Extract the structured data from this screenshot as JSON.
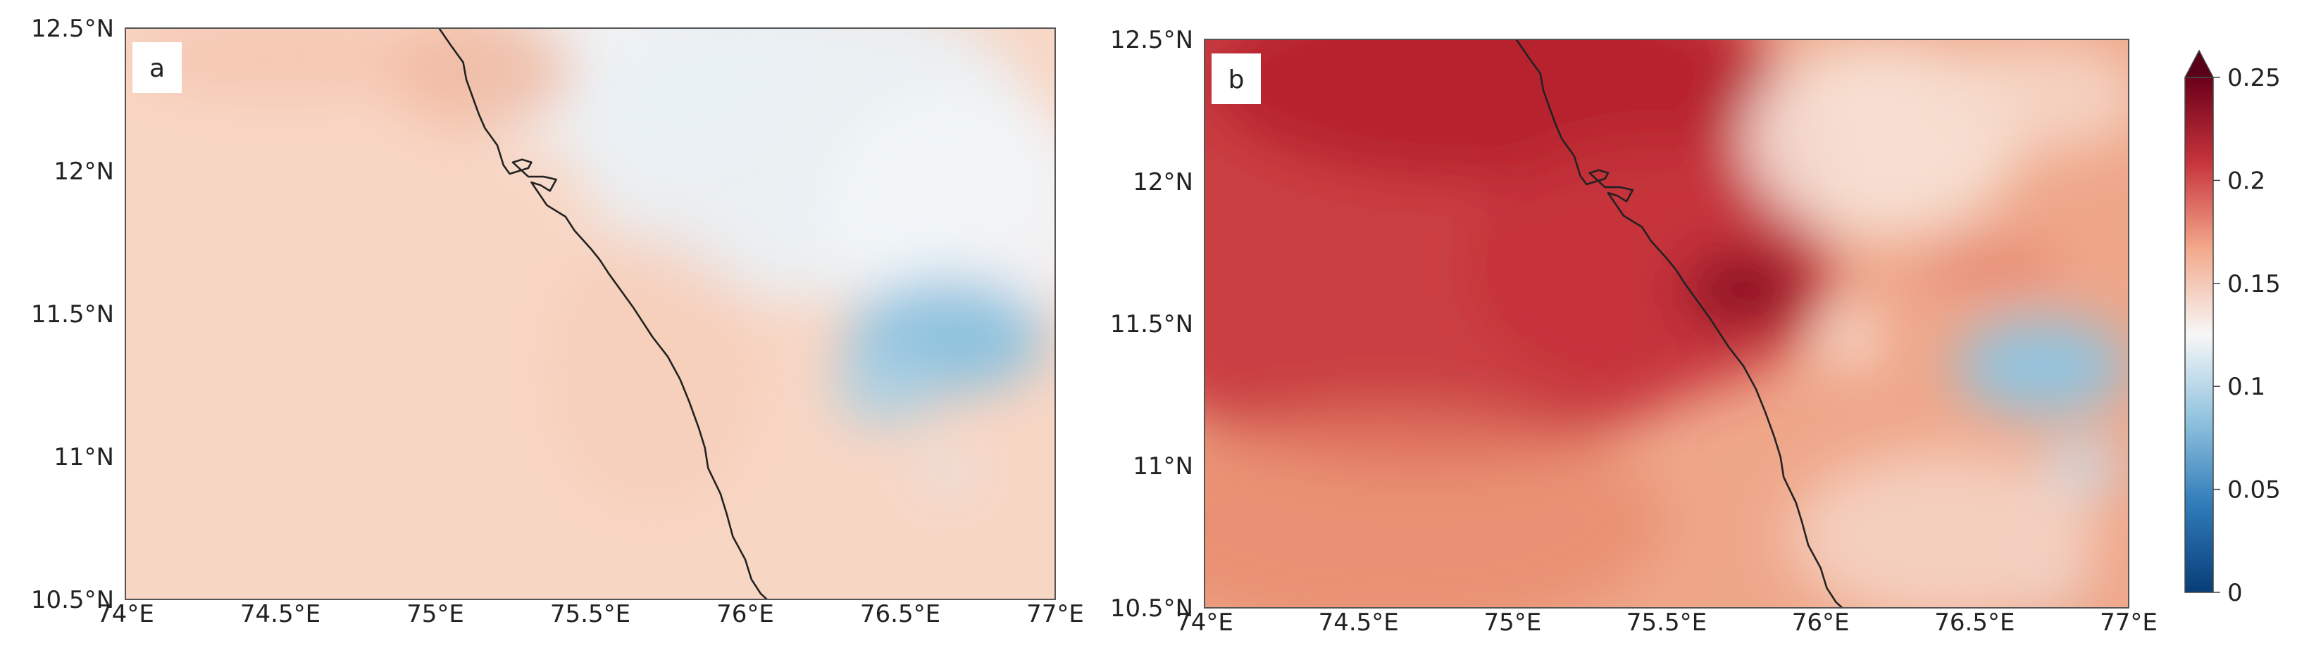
{
  "figure": {
    "panels": [
      {
        "id": "a",
        "label": "a",
        "x_ticks": [
          "74°E",
          "74.5°E",
          "75°E",
          "75.5°E",
          "76°E",
          "76.5°E",
          "77°E"
        ],
        "y_ticks": [
          "12.5°N",
          "12°N",
          "11.5°N",
          "11°N",
          "10.5°N"
        ],
        "background_color": "#f8d6c4",
        "field": [
          {
            "lon": 75.6,
            "lat": 12.35,
            "r_lon": 0.55,
            "r_lat": 0.3,
            "color": "#f0f4f8",
            "alpha": 0.95
          },
          {
            "lon": 76.2,
            "lat": 12.1,
            "r_lon": 0.75,
            "r_lat": 0.55,
            "color": "#eaf1f6",
            "alpha": 0.95
          },
          {
            "lon": 76.7,
            "lat": 11.85,
            "r_lon": 0.45,
            "r_lat": 0.45,
            "color": "#f2f5f8",
            "alpha": 0.9
          },
          {
            "lon": 76.65,
            "lat": 11.42,
            "r_lon": 0.32,
            "r_lat": 0.2,
            "color": "#8fc2de",
            "alpha": 1.0
          },
          {
            "lon": 76.45,
            "lat": 11.25,
            "r_lon": 0.16,
            "r_lat": 0.14,
            "color": "#a6cfe5",
            "alpha": 0.9
          },
          {
            "lon": 76.65,
            "lat": 10.95,
            "r_lon": 0.08,
            "r_lat": 0.06,
            "color": "#d8e8f2",
            "alpha": 0.9
          },
          {
            "lon": 75.15,
            "lat": 12.35,
            "r_lon": 0.3,
            "r_lat": 0.2,
            "color": "#f0b49a",
            "alpha": 0.8
          },
          {
            "lon": 74.5,
            "lat": 12.4,
            "r_lon": 0.5,
            "r_lat": 0.15,
            "color": "#f3c0a8",
            "alpha": 0.6
          },
          {
            "lon": 75.7,
            "lat": 11.3,
            "r_lon": 0.35,
            "r_lat": 0.5,
            "color": "#f6c9b3",
            "alpha": 0.5
          }
        ]
      },
      {
        "id": "b",
        "label": "b",
        "x_ticks": [
          "74°E",
          "74.5°E",
          "75°E",
          "75.5°E",
          "76°E",
          "76.5°E",
          "77°E"
        ],
        "y_ticks": [
          "12.5°N",
          "12°N",
          "11.5°N",
          "11°N",
          "10.5°N"
        ],
        "background_color": "#efa78a",
        "field": [
          {
            "lon": 74.7,
            "lat": 12.0,
            "r_lon": 1.3,
            "r_lat": 1.0,
            "color": "#c8393f",
            "alpha": 0.95
          },
          {
            "lon": 74.9,
            "lat": 12.35,
            "r_lon": 0.9,
            "r_lat": 0.35,
            "color": "#b51f2e",
            "alpha": 0.9
          },
          {
            "lon": 75.45,
            "lat": 11.7,
            "r_lon": 0.6,
            "r_lat": 0.45,
            "color": "#c53239",
            "alpha": 0.85
          },
          {
            "lon": 74.6,
            "lat": 10.8,
            "r_lon": 0.9,
            "r_lat": 0.4,
            "color": "#e7876b",
            "alpha": 0.7
          },
          {
            "lon": 75.75,
            "lat": 11.62,
            "r_lon": 0.2,
            "r_lat": 0.13,
            "color": "#8b0a22",
            "alpha": 1.0
          },
          {
            "lon": 76.55,
            "lat": 11.7,
            "r_lon": 0.25,
            "r_lat": 0.08,
            "color": "#e3826b",
            "alpha": 0.8
          },
          {
            "lon": 76.2,
            "lat": 12.15,
            "r_lon": 0.45,
            "r_lat": 0.35,
            "color": "#f7e4d8",
            "alpha": 0.9
          },
          {
            "lon": 76.7,
            "lat": 12.3,
            "r_lon": 0.35,
            "r_lat": 0.2,
            "color": "#f6dccd",
            "alpha": 0.8
          },
          {
            "lon": 76.1,
            "lat": 11.45,
            "r_lon": 0.08,
            "r_lat": 0.1,
            "color": "#fbeee6",
            "alpha": 0.95
          },
          {
            "lon": 76.72,
            "lat": 11.35,
            "r_lon": 0.28,
            "r_lat": 0.17,
            "color": "#92c4df",
            "alpha": 1.0
          },
          {
            "lon": 76.85,
            "lat": 11.0,
            "r_lon": 0.13,
            "r_lat": 0.1,
            "color": "#c6dfee",
            "alpha": 0.9
          },
          {
            "lon": 76.75,
            "lat": 10.55,
            "r_lon": 0.12,
            "r_lat": 0.04,
            "color": "#d8e8f2",
            "alpha": 0.8
          },
          {
            "lon": 76.4,
            "lat": 10.75,
            "r_lon": 0.5,
            "r_lat": 0.3,
            "color": "#f7e0d4",
            "alpha": 0.7
          }
        ]
      }
    ],
    "colorbar": {
      "ticks": [
        "0",
        "0.05",
        "0.1",
        "0.15",
        "0.2",
        "0.25"
      ],
      "stops": [
        "#083d77",
        "#2f7ab8",
        "#8fc2de",
        "#f7f7f7",
        "#f3a98c",
        "#c7353d",
        "#6b0019"
      ],
      "extend_color": "#5a0018"
    },
    "coastline": [
      [
        75.012,
        12.5
      ],
      [
        75.05,
        12.44
      ],
      [
        75.09,
        12.38
      ],
      [
        75.1,
        12.32
      ],
      [
        75.12,
        12.26
      ],
      [
        75.14,
        12.2
      ],
      [
        75.16,
        12.15
      ],
      [
        75.2,
        12.09
      ],
      [
        75.22,
        12.02
      ],
      [
        75.24,
        11.99
      ],
      [
        75.3,
        12.01
      ],
      [
        75.31,
        12.03
      ],
      [
        75.28,
        12.04
      ],
      [
        75.25,
        12.03
      ],
      [
        75.3,
        11.98
      ],
      [
        75.35,
        11.98
      ],
      [
        75.39,
        11.97
      ],
      [
        75.37,
        11.93
      ],
      [
        75.34,
        11.95
      ],
      [
        75.31,
        11.96
      ],
      [
        75.36,
        11.88
      ],
      [
        75.42,
        11.84
      ],
      [
        75.45,
        11.79
      ],
      [
        75.5,
        11.73
      ],
      [
        75.53,
        11.69
      ],
      [
        75.56,
        11.64
      ],
      [
        75.6,
        11.58
      ],
      [
        75.64,
        11.52
      ],
      [
        75.67,
        11.47
      ],
      [
        75.7,
        11.42
      ],
      [
        75.75,
        11.35
      ],
      [
        75.79,
        11.27
      ],
      [
        75.82,
        11.19
      ],
      [
        75.85,
        11.1
      ],
      [
        75.87,
        11.03
      ],
      [
        75.88,
        10.96
      ],
      [
        75.92,
        10.87
      ],
      [
        75.94,
        10.8
      ],
      [
        75.96,
        10.72
      ],
      [
        76.0,
        10.64
      ],
      [
        76.02,
        10.57
      ],
      [
        76.05,
        10.52
      ],
      [
        76.07,
        10.5
      ]
    ]
  }
}
